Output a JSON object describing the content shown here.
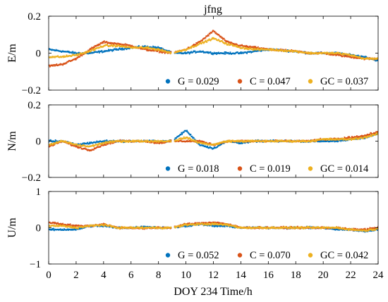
{
  "chart_data": {
    "type": "scatter",
    "title": "jfng",
    "xlabel": "DOY 234 Time/h",
    "xlim": [
      0,
      24
    ],
    "xticks": [
      0,
      2,
      4,
      6,
      8,
      10,
      12,
      14,
      16,
      18,
      20,
      22,
      24
    ],
    "colors": {
      "G": "#0072BD",
      "C": "#D95319",
      "GC": "#EDB120"
    },
    "panels": [
      {
        "ylabel": "E/m",
        "ylim": [
          -0.2,
          0.2
        ],
        "yticks": [
          -0.2,
          0,
          0.2
        ],
        "ytick_labels": [
          "−0.2",
          "0",
          "0.2"
        ],
        "legend": [
          {
            "label": "G = 0.029",
            "color": "#0072BD"
          },
          {
            "label": "C = 0.047",
            "color": "#D95319"
          },
          {
            "label": "GC = 0.037",
            "color": "#EDB120"
          }
        ],
        "series": [
          {
            "name": "G",
            "color": "#0072BD",
            "x": [
              0,
              1,
              2,
              3,
              4,
              5,
              6,
              7,
              8,
              9,
              10,
              11,
              12,
              13,
              14,
              15,
              16,
              17,
              18,
              19,
              20,
              21,
              22,
              23,
              24
            ],
            "y": [
              0.02,
              0.01,
              0.0,
              0.0,
              0.01,
              0.02,
              0.03,
              0.035,
              0.03,
              0.0,
              0.0,
              0.01,
              0.0,
              0.0,
              0.0,
              0.01,
              0.02,
              0.015,
              0.01,
              0.0,
              0.0,
              0.0,
              -0.01,
              -0.02,
              -0.04
            ]
          },
          {
            "name": "C",
            "color": "#D95319",
            "x": [
              0,
              1,
              2,
              3,
              4,
              5,
              6,
              7,
              8,
              9,
              10,
              11,
              12,
              13,
              14,
              15,
              16,
              17,
              18,
              19,
              20,
              21,
              22,
              23,
              24
            ],
            "y": [
              -0.07,
              -0.06,
              -0.03,
              0.02,
              0.06,
              0.05,
              0.04,
              0.02,
              0.01,
              0.0,
              0.02,
              0.06,
              0.12,
              0.06,
              0.04,
              0.03,
              0.02,
              0.015,
              0.01,
              0.0,
              0.0,
              -0.01,
              -0.02,
              -0.03,
              -0.03
            ]
          },
          {
            "name": "GC",
            "color": "#EDB120",
            "x": [
              0,
              1,
              2,
              3,
              4,
              5,
              6,
              7,
              8,
              9,
              10,
              11,
              12,
              13,
              14,
              15,
              16,
              17,
              18,
              19,
              20,
              21,
              22,
              23,
              24
            ],
            "y": [
              -0.02,
              -0.02,
              -0.01,
              0.01,
              0.04,
              0.04,
              0.03,
              0.03,
              0.02,
              0.0,
              0.02,
              0.05,
              0.08,
              0.05,
              0.03,
              0.02,
              0.02,
              0.015,
              0.01,
              0.0,
              0.0,
              0.0,
              -0.01,
              -0.03,
              -0.03
            ]
          }
        ]
      },
      {
        "ylabel": "N/m",
        "ylim": [
          -0.2,
          0.2
        ],
        "yticks": [
          -0.2,
          0,
          0.2
        ],
        "ytick_labels": [
          "−0.2",
          "0",
          "0.2"
        ],
        "legend": [
          {
            "label": "G = 0.018",
            "color": "#0072BD"
          },
          {
            "label": "C = 0.019",
            "color": "#D95319"
          },
          {
            "label": "GC = 0.014",
            "color": "#EDB120"
          }
        ],
        "series": [
          {
            "name": "G",
            "color": "#0072BD",
            "x": [
              0,
              1,
              2,
              3,
              4,
              5,
              6,
              7,
              8,
              9,
              10,
              11,
              12,
              13,
              14,
              15,
              16,
              17,
              18,
              19,
              20,
              21,
              22,
              23,
              24
            ],
            "y": [
              0.0,
              0.0,
              -0.02,
              -0.01,
              0.0,
              0.0,
              0.0,
              0.0,
              0.0,
              0.0,
              0.06,
              -0.02,
              -0.04,
              0.0,
              -0.01,
              0.0,
              0.0,
              0.0,
              0.0,
              0.0,
              0.0,
              0.0,
              0.01,
              0.02,
              0.04
            ]
          },
          {
            "name": "C",
            "color": "#D95319",
            "x": [
              0,
              1,
              2,
              3,
              4,
              5,
              6,
              7,
              8,
              9,
              10,
              11,
              12,
              13,
              14,
              15,
              16,
              17,
              18,
              19,
              20,
              21,
              22,
              23,
              24
            ],
            "y": [
              -0.03,
              0.0,
              -0.03,
              -0.05,
              -0.02,
              0.0,
              0.0,
              0.0,
              -0.01,
              0.0,
              0.0,
              0.0,
              -0.02,
              0.0,
              0.0,
              0.0,
              0.0,
              0.0,
              0.0,
              0.0,
              0.01,
              0.01,
              0.02,
              0.03,
              0.05
            ]
          },
          {
            "name": "GC",
            "color": "#EDB120",
            "x": [
              0,
              1,
              2,
              3,
              4,
              5,
              6,
              7,
              8,
              9,
              10,
              11,
              12,
              13,
              14,
              15,
              16,
              17,
              18,
              19,
              20,
              21,
              22,
              23,
              24
            ],
            "y": [
              -0.02,
              0.0,
              -0.02,
              -0.03,
              -0.01,
              0.0,
              0.0,
              0.0,
              0.0,
              0.0,
              0.02,
              -0.01,
              -0.02,
              0.0,
              0.0,
              0.0,
              0.0,
              0.0,
              0.0,
              0.0,
              0.01,
              0.01,
              0.01,
              0.02,
              0.04
            ]
          }
        ]
      },
      {
        "ylabel": "U/m",
        "ylim": [
          -1,
          1
        ],
        "yticks": [
          -1,
          0,
          1
        ],
        "ytick_labels": [
          "−1",
          "0",
          "1"
        ],
        "legend": [
          {
            "label": "G = 0.052",
            "color": "#0072BD"
          },
          {
            "label": "C = 0.070",
            "color": "#D95319"
          },
          {
            "label": "GC = 0.042",
            "color": "#EDB120"
          }
        ],
        "series": [
          {
            "name": "G",
            "color": "#0072BD",
            "x": [
              0,
              1,
              2,
              3,
              4,
              5,
              6,
              7,
              8,
              9,
              10,
              11,
              12,
              13,
              14,
              15,
              16,
              17,
              18,
              19,
              20,
              21,
              22,
              23,
              24
            ],
            "y": [
              -0.05,
              -0.05,
              -0.05,
              0.05,
              0.05,
              0.0,
              0.0,
              0.03,
              0.0,
              0.0,
              0.05,
              0.1,
              0.05,
              0.05,
              0.0,
              0.0,
              0.0,
              0.0,
              0.0,
              0.0,
              0.0,
              -0.05,
              -0.05,
              -0.1,
              -0.05
            ]
          },
          {
            "name": "C",
            "color": "#D95319",
            "x": [
              0,
              1,
              2,
              3,
              4,
              5,
              6,
              7,
              8,
              9,
              10,
              11,
              12,
              13,
              14,
              15,
              16,
              17,
              18,
              19,
              20,
              21,
              22,
              23,
              24
            ],
            "y": [
              0.15,
              0.1,
              0.05,
              0.05,
              0.1,
              0.0,
              0.0,
              -0.02,
              0.0,
              0.0,
              0.1,
              0.12,
              0.15,
              0.1,
              0.0,
              0.0,
              0.0,
              0.0,
              0.0,
              0.0,
              0.0,
              0.0,
              -0.05,
              -0.05,
              0.0
            ]
          },
          {
            "name": "GC",
            "color": "#EDB120",
            "x": [
              0,
              1,
              2,
              3,
              4,
              5,
              6,
              7,
              8,
              9,
              10,
              11,
              12,
              13,
              14,
              15,
              16,
              17,
              18,
              19,
              20,
              21,
              22,
              23,
              24
            ],
            "y": [
              0.05,
              0.05,
              0.0,
              0.05,
              0.08,
              0.0,
              0.0,
              0.0,
              0.0,
              0.0,
              0.08,
              0.1,
              0.1,
              0.08,
              0.0,
              0.0,
              0.0,
              0.0,
              0.0,
              0.0,
              0.0,
              0.0,
              -0.05,
              -0.08,
              -0.03
            ]
          }
        ]
      }
    ]
  }
}
